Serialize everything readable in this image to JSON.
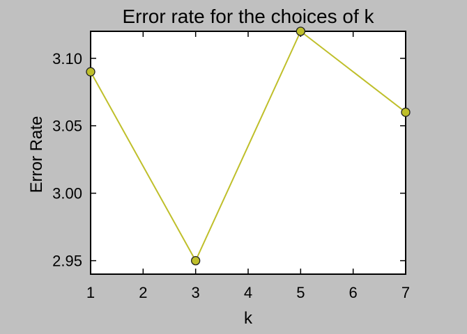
{
  "chart_data": {
    "type": "line",
    "title": "Error rate for the choices of k",
    "xlabel": "k",
    "ylabel": "Error Rate",
    "x": [
      1,
      3,
      5,
      7
    ],
    "series": [
      {
        "values": [
          3.09,
          2.95,
          3.12,
          3.06
        ]
      }
    ],
    "xlim": [
      1,
      7
    ],
    "ylim": [
      2.94,
      3.12
    ],
    "xticks": [
      1,
      2,
      3,
      4,
      5,
      6,
      7
    ],
    "xtick_labels": [
      "1",
      "2",
      "3",
      "4",
      "5",
      "6",
      "7"
    ],
    "yticks": [
      2.95,
      3.0,
      3.05,
      3.1
    ],
    "ytick_labels": [
      "2.95",
      "3.00",
      "3.05",
      "3.10"
    ],
    "grid": false,
    "legend": "none",
    "colors": {
      "background": "#c0c0c0",
      "plot_area": "#ffffff",
      "line": "#bfbf2a",
      "marker_fill": "#bfbf2a",
      "marker_edge": "#222222"
    }
  }
}
